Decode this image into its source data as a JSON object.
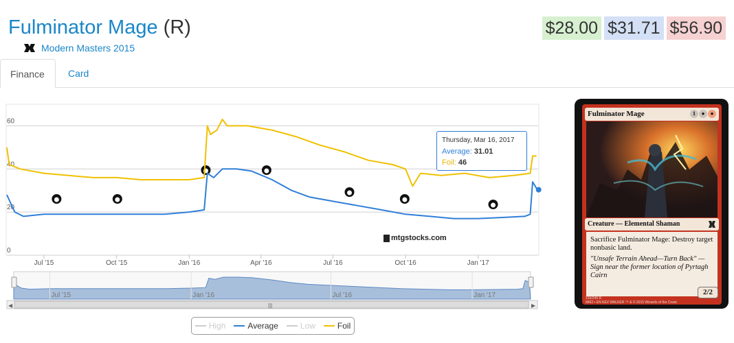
{
  "header": {
    "card_name": "Fulminator Mage",
    "rarity": "(R)",
    "set_name": "Modern Masters 2015",
    "set_icon": "modern-masters-set-icon"
  },
  "prices": {
    "low": "$28.00",
    "average": "$31.71",
    "high": "$56.90",
    "colors": {
      "low": "#d7f0d0",
      "average": "#d3e0f6",
      "high": "#f6d1d1"
    }
  },
  "tabs": [
    {
      "label": "Finance",
      "active": true
    },
    {
      "label": "Card",
      "active": false
    }
  ],
  "tooltip": {
    "date": "Thursday, Mar 16, 2017",
    "average_label": "Average:",
    "average_value": "31.01",
    "foil_label": "Foil:",
    "foil_value": "46"
  },
  "watermark": "mtgstocks.com",
  "legend": [
    {
      "label": "High",
      "enabled": false,
      "color": "#cccccc"
    },
    {
      "label": "Average",
      "enabled": true,
      "color": "#2f7ed8"
    },
    {
      "label": "Low",
      "enabled": false,
      "color": "#cccccc"
    },
    {
      "label": "Foil",
      "enabled": true,
      "color": "#f0c000"
    }
  ],
  "card_image": {
    "title": "Fulminator Mage",
    "mana": [
      "1",
      "B",
      "R"
    ],
    "type_line": "Creature — Elemental Shaman",
    "rules_text": "Sacrifice Fulminator Mage: Destroy target nonbasic land.",
    "flavor_text": "\"Unsafe Terrain Ahead—Turn Back\" —Sign near the former location of Pyrtagh Cairn",
    "pt": "2/2",
    "footer_left": "193/249 R",
    "footer_set": "MM2 • EN",
    "footer_artist": "KEV WALKER",
    "footer_right": "™ & © 2015 Wizards of the Coast"
  },
  "chart_data": {
    "type": "line",
    "x_axis": "date",
    "xlim": [
      "2015-05-15",
      "2017-03-18"
    ],
    "ylim": [
      0,
      70
    ],
    "y_ticks": [
      "0",
      "20",
      "40",
      "60"
    ],
    "x_ticks": [
      {
        "label": "Jul '15",
        "date": "2015-07-01"
      },
      {
        "label": "Oct '15",
        "date": "2015-10-01"
      },
      {
        "label": "Jan '16",
        "date": "2016-01-01"
      },
      {
        "label": "Apr '16",
        "date": "2016-04-01"
      },
      {
        "label": "Jul '16",
        "date": "2016-07-01"
      },
      {
        "label": "Oct '16",
        "date": "2016-10-01"
      },
      {
        "label": "Jan '17",
        "date": "2017-01-01"
      }
    ],
    "navigator_ticks": [
      {
        "label": "Jul '15",
        "date": "2015-07-01"
      },
      {
        "label": "Jan '16",
        "date": "2016-01-01"
      },
      {
        "label": "Jul '16",
        "date": "2016-07-01"
      },
      {
        "label": "Jan '17",
        "date": "2017-01-01"
      }
    ],
    "grid": true,
    "series": [
      {
        "name": "Average",
        "color": "#2f7ed8",
        "points": [
          [
            "2015-05-15",
            28
          ],
          [
            "2015-05-20",
            24
          ],
          [
            "2015-05-25",
            20
          ],
          [
            "2015-06-05",
            18
          ],
          [
            "2015-07-01",
            19
          ],
          [
            "2015-08-01",
            19
          ],
          [
            "2015-09-01",
            19
          ],
          [
            "2015-10-01",
            19
          ],
          [
            "2015-11-01",
            19
          ],
          [
            "2015-12-01",
            19
          ],
          [
            "2016-01-01",
            20
          ],
          [
            "2016-01-20",
            21
          ],
          [
            "2016-01-24",
            38
          ],
          [
            "2016-02-01",
            36
          ],
          [
            "2016-02-12",
            40
          ],
          [
            "2016-03-01",
            40
          ],
          [
            "2016-03-20",
            39
          ],
          [
            "2016-04-15",
            35
          ],
          [
            "2016-05-10",
            30
          ],
          [
            "2016-06-01",
            27
          ],
          [
            "2016-07-01",
            25
          ],
          [
            "2016-08-01",
            23
          ],
          [
            "2016-09-01",
            21
          ],
          [
            "2016-10-01",
            19
          ],
          [
            "2016-11-01",
            18
          ],
          [
            "2016-12-01",
            17
          ],
          [
            "2017-01-01",
            17
          ],
          [
            "2017-02-01",
            17.5
          ],
          [
            "2017-03-01",
            18
          ],
          [
            "2017-03-08",
            19
          ],
          [
            "2017-03-11",
            34
          ],
          [
            "2017-03-16",
            31
          ]
        ]
      },
      {
        "name": "Foil",
        "color": "#f0c000",
        "points": [
          [
            "2015-05-15",
            50
          ],
          [
            "2015-05-18",
            42
          ],
          [
            "2015-06-01",
            40
          ],
          [
            "2015-07-01",
            38
          ],
          [
            "2015-08-01",
            37
          ],
          [
            "2015-09-01",
            36
          ],
          [
            "2015-10-01",
            36
          ],
          [
            "2015-11-01",
            35
          ],
          [
            "2015-12-01",
            35
          ],
          [
            "2016-01-01",
            35
          ],
          [
            "2016-01-20",
            36
          ],
          [
            "2016-01-24",
            60
          ],
          [
            "2016-01-28",
            56
          ],
          [
            "2016-02-05",
            58
          ],
          [
            "2016-02-12",
            63
          ],
          [
            "2016-02-18",
            60
          ],
          [
            "2016-03-15",
            60
          ],
          [
            "2016-04-15",
            58
          ],
          [
            "2016-05-15",
            55
          ],
          [
            "2016-06-15",
            51
          ],
          [
            "2016-07-15",
            48
          ],
          [
            "2016-08-15",
            44
          ],
          [
            "2016-09-15",
            42
          ],
          [
            "2016-10-01",
            40
          ],
          [
            "2016-10-10",
            32
          ],
          [
            "2016-10-20",
            38
          ],
          [
            "2016-11-15",
            37
          ],
          [
            "2016-12-15",
            38
          ],
          [
            "2017-01-15",
            36
          ],
          [
            "2017-02-15",
            37
          ],
          [
            "2017-03-08",
            38
          ],
          [
            "2017-03-11",
            46
          ],
          [
            "2017-03-16",
            46
          ]
        ]
      }
    ],
    "navigator_series": "Average",
    "expansion_markers": [
      {
        "date": "2015-07-17",
        "icon": "magic-origins-set-icon"
      },
      {
        "date": "2015-10-02",
        "icon": "battle-for-zendikar-set-icon"
      },
      {
        "date": "2016-01-22",
        "icon": "oath-of-the-gatewatch-set-icon"
      },
      {
        "date": "2016-04-08",
        "icon": "shadows-over-innistrad-set-icon"
      },
      {
        "date": "2016-07-22",
        "icon": "eldritch-moon-set-icon"
      },
      {
        "date": "2016-09-30",
        "icon": "kaladesh-set-icon"
      },
      {
        "date": "2017-01-20",
        "icon": "aether-revolt-set-icon"
      }
    ]
  }
}
